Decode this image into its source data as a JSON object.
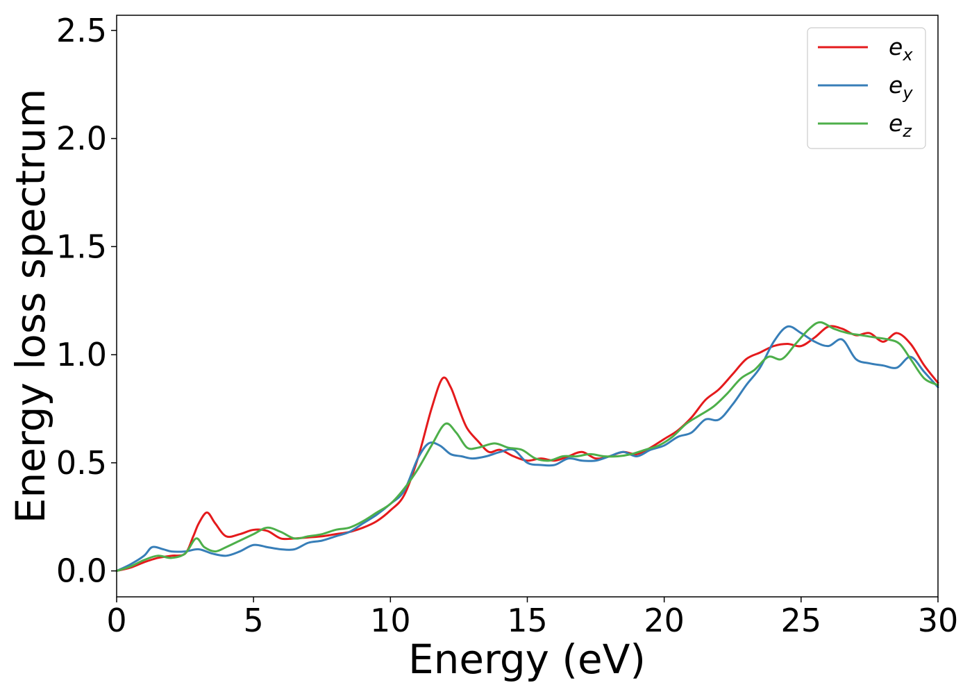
{
  "chart_data": {
    "type": "line",
    "title": "",
    "xlabel": "Energy (eV)",
    "ylabel": "Energy loss spectrum",
    "xlim": [
      0,
      30
    ],
    "ylim": [
      -0.12,
      2.57
    ],
    "xticks": [
      0,
      5,
      10,
      15,
      20,
      25,
      30
    ],
    "xtick_labels": [
      "0",
      "5",
      "10",
      "15",
      "20",
      "25",
      "30"
    ],
    "yticks": [
      0.0,
      0.5,
      1.0,
      1.5,
      2.0,
      2.5
    ],
    "ytick_labels": [
      "0.0",
      "0.5",
      "1.0",
      "1.5",
      "2.0",
      "2.5"
    ],
    "grid": false,
    "legend_position": "top-right",
    "series": [
      {
        "name": "e_x",
        "label_base": "e",
        "label_sub": "x",
        "color": "#e41a1c",
        "x": [
          0,
          0.5,
          1.0,
          1.5,
          2.0,
          2.5,
          2.8,
          3.0,
          3.3,
          3.6,
          4.0,
          4.5,
          5.0,
          5.5,
          6.0,
          6.5,
          7.0,
          7.5,
          8.0,
          8.5,
          9.0,
          9.5,
          10.0,
          10.5,
          11.0,
          11.5,
          11.9,
          12.2,
          12.5,
          12.8,
          13.2,
          13.6,
          14.0,
          14.5,
          15.0,
          15.5,
          16.0,
          16.5,
          17.0,
          17.5,
          18.0,
          18.5,
          19.0,
          19.5,
          20.0,
          20.5,
          21.0,
          21.5,
          22.0,
          22.5,
          23.0,
          23.5,
          24.0,
          24.5,
          25.0,
          25.5,
          26.0,
          26.5,
          27.0,
          27.5,
          28.0,
          28.5,
          29.0,
          29.5,
          30.0
        ],
        "y": [
          0.0,
          0.015,
          0.04,
          0.06,
          0.07,
          0.08,
          0.16,
          0.22,
          0.27,
          0.22,
          0.16,
          0.17,
          0.19,
          0.185,
          0.15,
          0.15,
          0.155,
          0.16,
          0.17,
          0.18,
          0.2,
          0.23,
          0.28,
          0.35,
          0.52,
          0.75,
          0.89,
          0.85,
          0.75,
          0.66,
          0.6,
          0.55,
          0.56,
          0.53,
          0.51,
          0.52,
          0.51,
          0.53,
          0.55,
          0.52,
          0.53,
          0.55,
          0.54,
          0.57,
          0.61,
          0.65,
          0.71,
          0.79,
          0.84,
          0.91,
          0.98,
          1.01,
          1.04,
          1.05,
          1.04,
          1.08,
          1.13,
          1.12,
          1.09,
          1.1,
          1.06,
          1.1,
          1.05,
          0.95,
          0.87
        ]
      },
      {
        "name": "e_y",
        "label_base": "e",
        "label_sub": "y",
        "color": "#377eb8",
        "x": [
          0,
          0.5,
          1.0,
          1.3,
          1.7,
          2.0,
          2.5,
          3.0,
          3.5,
          4.0,
          4.5,
          5.0,
          5.5,
          6.0,
          6.5,
          7.0,
          7.5,
          8.0,
          8.5,
          9.0,
          9.5,
          10.0,
          10.5,
          11.0,
          11.4,
          11.8,
          12.2,
          12.6,
          13.0,
          13.5,
          14.0,
          14.5,
          15.0,
          15.5,
          16.0,
          16.5,
          17.0,
          17.5,
          18.0,
          18.5,
          19.0,
          19.5,
          20.0,
          20.5,
          21.0,
          21.5,
          22.0,
          22.5,
          23.0,
          23.5,
          24.0,
          24.5,
          25.0,
          25.5,
          26.0,
          26.5,
          27.0,
          27.5,
          28.0,
          28.5,
          29.0,
          29.5,
          30.0
        ],
        "y": [
          0.0,
          0.03,
          0.07,
          0.11,
          0.1,
          0.09,
          0.09,
          0.1,
          0.08,
          0.07,
          0.09,
          0.12,
          0.11,
          0.1,
          0.1,
          0.13,
          0.14,
          0.16,
          0.18,
          0.22,
          0.26,
          0.31,
          0.37,
          0.52,
          0.59,
          0.58,
          0.54,
          0.53,
          0.52,
          0.53,
          0.55,
          0.56,
          0.5,
          0.49,
          0.49,
          0.52,
          0.51,
          0.51,
          0.53,
          0.55,
          0.53,
          0.56,
          0.58,
          0.62,
          0.64,
          0.7,
          0.7,
          0.77,
          0.86,
          0.94,
          1.06,
          1.13,
          1.1,
          1.06,
          1.04,
          1.07,
          0.98,
          0.96,
          0.95,
          0.94,
          0.99,
          0.92,
          0.85
        ]
      },
      {
        "name": "e_z",
        "label_base": "e",
        "label_sub": "z",
        "color": "#4daf4a",
        "x": [
          0,
          0.5,
          1.0,
          1.5,
          2.0,
          2.5,
          2.9,
          3.2,
          3.6,
          4.0,
          4.5,
          5.0,
          5.5,
          6.0,
          6.5,
          7.0,
          7.5,
          8.0,
          8.5,
          9.0,
          9.5,
          10.0,
          10.5,
          11.0,
          11.5,
          12.0,
          12.4,
          12.8,
          13.2,
          13.8,
          14.3,
          14.8,
          15.3,
          15.8,
          16.3,
          16.8,
          17.3,
          17.8,
          18.3,
          18.8,
          19.3,
          19.8,
          20.3,
          20.8,
          21.3,
          21.8,
          22.3,
          22.8,
          23.3,
          23.8,
          24.3,
          24.8,
          25.3,
          25.7,
          26.2,
          26.7,
          27.2,
          27.7,
          28.2,
          28.6,
          29.0,
          29.5,
          30.0
        ],
        "y": [
          0.0,
          0.02,
          0.05,
          0.07,
          0.06,
          0.08,
          0.15,
          0.11,
          0.09,
          0.11,
          0.14,
          0.17,
          0.2,
          0.18,
          0.15,
          0.16,
          0.17,
          0.19,
          0.2,
          0.23,
          0.27,
          0.31,
          0.38,
          0.47,
          0.58,
          0.68,
          0.64,
          0.57,
          0.57,
          0.59,
          0.57,
          0.56,
          0.52,
          0.51,
          0.53,
          0.53,
          0.54,
          0.53,
          0.53,
          0.54,
          0.56,
          0.58,
          0.62,
          0.68,
          0.72,
          0.76,
          0.82,
          0.89,
          0.93,
          0.99,
          0.98,
          1.05,
          1.12,
          1.15,
          1.12,
          1.1,
          1.09,
          1.08,
          1.07,
          1.05,
          0.98,
          0.89,
          0.86
        ]
      }
    ]
  }
}
